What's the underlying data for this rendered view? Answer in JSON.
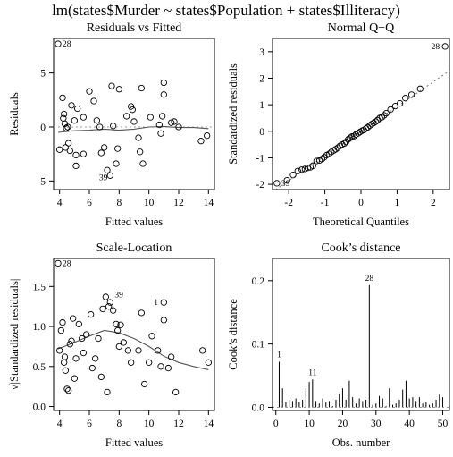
{
  "title": "lm(states$Murder ~ states$Population + states$Illiteracy)",
  "chart_data": [
    {
      "type": "scatter",
      "title": "Residuals vs Fitted",
      "xlabel": "Fitted values",
      "ylabel": "Residuals",
      "xlim": [
        3.6,
        14.4
      ],
      "ylim": [
        -5.8,
        8.2
      ],
      "xticks": [
        4,
        6,
        8,
        10,
        12,
        14
      ],
      "yticks": [
        -5,
        0,
        5
      ],
      "reference_line": 0,
      "points": [
        [
          3.9,
          7.7
        ],
        [
          4.0,
          -2.1
        ],
        [
          4.2,
          2.7
        ],
        [
          4.3,
          1.2
        ],
        [
          4.25,
          0.8
        ],
        [
          4.35,
          0.3
        ],
        [
          4.45,
          -0.1
        ],
        [
          4.55,
          0.0
        ],
        [
          4.4,
          -1.9
        ],
        [
          4.6,
          -1.5
        ],
        [
          4.7,
          -2.2
        ],
        [
          4.8,
          2.0
        ],
        [
          5.0,
          0.6
        ],
        [
          5.1,
          -2.6
        ],
        [
          5.2,
          1.7
        ],
        [
          5.1,
          -3.6
        ],
        [
          5.6,
          0.9
        ],
        [
          5.6,
          -2.5
        ],
        [
          6.0,
          3.3
        ],
        [
          6.3,
          2.4
        ],
        [
          6.5,
          0.6
        ],
        [
          6.7,
          0.0
        ],
        [
          6.8,
          -2.4
        ],
        [
          7.0,
          -1.9
        ],
        [
          7.2,
          -4.0
        ],
        [
          7.4,
          -4.5
        ],
        [
          7.5,
          3.8
        ],
        [
          7.6,
          0.1
        ],
        [
          7.8,
          -3.4
        ],
        [
          7.9,
          -2.0
        ],
        [
          8.0,
          3.5
        ],
        [
          8.5,
          1.0
        ],
        [
          8.8,
          1.9
        ],
        [
          8.9,
          1.6
        ],
        [
          9.0,
          0.5
        ],
        [
          9.3,
          -1.0
        ],
        [
          9.4,
          -2.3
        ],
        [
          9.5,
          3.6
        ],
        [
          9.6,
          -3.4
        ],
        [
          10.1,
          0.9
        ],
        [
          10.7,
          0.2
        ],
        [
          10.8,
          -0.6
        ],
        [
          10.9,
          1.0
        ],
        [
          11.0,
          3.0
        ],
        [
          11.0,
          4.1
        ],
        [
          11.5,
          0.4
        ],
        [
          11.7,
          0.5
        ],
        [
          12.0,
          0.0
        ],
        [
          13.5,
          -1.3
        ],
        [
          13.9,
          -0.8
        ]
      ],
      "smooth": [
        [
          3.9,
          -0.5
        ],
        [
          5,
          -0.35
        ],
        [
          6,
          -0.3
        ],
        [
          7,
          -0.2
        ],
        [
          8,
          -0.3
        ],
        [
          9,
          -0.2
        ],
        [
          10,
          0.0
        ],
        [
          11,
          0.05
        ],
        [
          12,
          -0.05
        ],
        [
          13,
          -0.05
        ],
        [
          14,
          -0.15
        ]
      ],
      "point_labels": [
        {
          "label": "28",
          "x": 3.9,
          "y": 7.7
        },
        {
          "label": "39",
          "x": 7.4,
          "y": -4.5
        }
      ]
    },
    {
      "type": "scatter",
      "title": "Normal Q−Q",
      "xlabel": "Theoretical Quantiles",
      "ylabel": "Standardized residuals",
      "xlim": [
        -2.45,
        2.45
      ],
      "ylim": [
        -2.2,
        3.5
      ],
      "xticks": [
        -2,
        -1,
        0,
        1,
        2
      ],
      "yticks": [
        -2,
        -1,
        0,
        1,
        2,
        3
      ],
      "reference_line": {
        "intercept": 0,
        "slope": 0.93
      },
      "points": [
        [
          -2.33,
          -1.96
        ],
        [
          -2.05,
          -1.85
        ],
        [
          -1.88,
          -1.65
        ],
        [
          -1.75,
          -1.5
        ],
        [
          -1.64,
          -1.45
        ],
        [
          -1.55,
          -1.42
        ],
        [
          -1.47,
          -1.38
        ],
        [
          -1.4,
          -1.36
        ],
        [
          -1.33,
          -1.3
        ],
        [
          -1.23,
          -1.12
        ],
        [
          -1.15,
          -1.1
        ],
        [
          -1.08,
          -1.05
        ],
        [
          -1.02,
          -0.98
        ],
        [
          -0.95,
          -0.9
        ],
        [
          -0.88,
          -0.85
        ],
        [
          -0.82,
          -0.78
        ],
        [
          -0.75,
          -0.72
        ],
        [
          -0.7,
          -0.68
        ],
        [
          -0.64,
          -0.62
        ],
        [
          -0.58,
          -0.55
        ],
        [
          -0.52,
          -0.5
        ],
        [
          -0.46,
          -0.46
        ],
        [
          -0.41,
          -0.4
        ],
        [
          -0.35,
          -0.3
        ],
        [
          -0.3,
          -0.25
        ],
        [
          -0.25,
          -0.2
        ],
        [
          -0.19,
          -0.18
        ],
        [
          -0.14,
          -0.12
        ],
        [
          -0.08,
          -0.08
        ],
        [
          -0.03,
          -0.03
        ],
        [
          0.03,
          0.02
        ],
        [
          0.08,
          0.05
        ],
        [
          0.14,
          0.1
        ],
        [
          0.19,
          0.15
        ],
        [
          0.25,
          0.22
        ],
        [
          0.3,
          0.27
        ],
        [
          0.35,
          0.31
        ],
        [
          0.41,
          0.36
        ],
        [
          0.46,
          0.42
        ],
        [
          0.52,
          0.5
        ],
        [
          0.58,
          0.53
        ],
        [
          0.64,
          0.6
        ],
        [
          0.7,
          0.68
        ],
        [
          0.82,
          0.82
        ],
        [
          0.95,
          0.95
        ],
        [
          1.08,
          1.05
        ],
        [
          1.23,
          1.25
        ],
        [
          1.4,
          1.38
        ],
        [
          1.64,
          1.6
        ],
        [
          2.33,
          3.2
        ]
      ],
      "point_labels": [
        {
          "label": "28",
          "x": 2.33,
          "y": 3.2
        },
        {
          "label": "39",
          "x": -2.33,
          "y": -1.96
        }
      ]
    },
    {
      "type": "scatter",
      "title": "Scale-Location",
      "xlabel": "Fitted values",
      "ylabel": "√|Standardized residuals|",
      "xlim": [
        3.6,
        14.4
      ],
      "ylim": [
        -0.05,
        1.85
      ],
      "xticks": [
        4,
        6,
        8,
        10,
        12,
        14
      ],
      "yticks": [
        0.0,
        0.5,
        1.0,
        1.5
      ],
      "points": [
        [
          3.9,
          1.79
        ],
        [
          4.0,
          0.7
        ],
        [
          4.1,
          0.95
        ],
        [
          4.2,
          1.05
        ],
        [
          4.3,
          0.55
        ],
        [
          4.35,
          0.62
        ],
        [
          4.4,
          0.45
        ],
        [
          4.5,
          0.22
        ],
        [
          4.6,
          0.2
        ],
        [
          4.7,
          0.78
        ],
        [
          4.8,
          0.82
        ],
        [
          4.9,
          1.1
        ],
        [
          5.0,
          0.35
        ],
        [
          5.1,
          0.6
        ],
        [
          5.3,
          1.03
        ],
        [
          5.5,
          0.85
        ],
        [
          5.6,
          0.67
        ],
        [
          5.8,
          0.9
        ],
        [
          6.1,
          1.15
        ],
        [
          6.2,
          0.48
        ],
        [
          6.4,
          0.6
        ],
        [
          6.6,
          0.85
        ],
        [
          6.8,
          0.37
        ],
        [
          6.9,
          1.22
        ],
        [
          7.1,
          1.37
        ],
        [
          7.2,
          0.18
        ],
        [
          7.3,
          1.25
        ],
        [
          7.4,
          1.3
        ],
        [
          7.6,
          1.2
        ],
        [
          7.8,
          1.03
        ],
        [
          7.9,
          0.95
        ],
        [
          8.0,
          0.75
        ],
        [
          8.1,
          1.02
        ],
        [
          8.3,
          0.8
        ],
        [
          8.6,
          0.7
        ],
        [
          8.8,
          0.55
        ],
        [
          9.3,
          0.7
        ],
        [
          9.5,
          1.17
        ],
        [
          9.7,
          0.28
        ],
        [
          10.0,
          0.55
        ],
        [
          10.2,
          0.88
        ],
        [
          10.6,
          0.7
        ],
        [
          10.8,
          0.5
        ],
        [
          11.0,
          1.08
        ],
        [
          11.0,
          1.3
        ],
        [
          11.3,
          0.48
        ],
        [
          11.5,
          0.62
        ],
        [
          11.8,
          0.18
        ],
        [
          13.6,
          0.7
        ],
        [
          14.0,
          0.55
        ]
      ],
      "smooth": [
        [
          3.9,
          0.72
        ],
        [
          5,
          0.8
        ],
        [
          6,
          0.88
        ],
        [
          7,
          0.95
        ],
        [
          8,
          0.92
        ],
        [
          9,
          0.85
        ],
        [
          10,
          0.75
        ],
        [
          11,
          0.63
        ],
        [
          12,
          0.55
        ],
        [
          13,
          0.5
        ],
        [
          14,
          0.46
        ]
      ],
      "point_labels": [
        {
          "label": "28",
          "x": 3.9,
          "y": 1.79
        },
        {
          "label": "39",
          "x": 7.4,
          "y": 1.4
        },
        {
          "label": "1",
          "x": 10.8,
          "y": 1.3
        }
      ]
    },
    {
      "type": "bar",
      "title": "Cook’s distance",
      "xlabel": "Obs. number",
      "ylabel": "Cook’s distance",
      "xlim": [
        -1,
        52
      ],
      "ylim": [
        -0.005,
        0.235
      ],
      "xticks": [
        0,
        10,
        20,
        30,
        40,
        50
      ],
      "yticks": [
        0.0,
        0.1,
        0.2
      ],
      "x": [
        1,
        2,
        3,
        4,
        5,
        6,
        7,
        8,
        9,
        10,
        11,
        12,
        13,
        14,
        15,
        16,
        17,
        18,
        19,
        20,
        21,
        22,
        23,
        24,
        25,
        26,
        27,
        28,
        29,
        30,
        31,
        32,
        33,
        34,
        35,
        36,
        37,
        38,
        39,
        40,
        41,
        42,
        43,
        44,
        45,
        46,
        47,
        48,
        49,
        50
      ],
      "values": [
        0.072,
        0.03,
        0.008,
        0.012,
        0.01,
        0.014,
        0.008,
        0.012,
        0.03,
        0.04,
        0.044,
        0.01,
        0.006,
        0.014,
        0.008,
        0.01,
        0.002,
        0.012,
        0.022,
        0.03,
        0.012,
        0.042,
        0.016,
        0.006,
        0.014,
        0.01,
        0.012,
        0.193,
        0.004,
        0.006,
        0.018,
        0.014,
        0.002,
        0.03,
        0.004,
        0.006,
        0.012,
        0.028,
        0.042,
        0.014,
        0.016,
        0.01,
        0.016,
        0.006,
        0.008,
        0.004,
        0.006,
        0.012,
        0.02,
        0.016
      ],
      "point_labels": [
        {
          "label": "1",
          "x": 1,
          "y": 0.072
        },
        {
          "label": "11",
          "x": 11,
          "y": 0.044
        },
        {
          "label": "28",
          "x": 28,
          "y": 0.193
        }
      ]
    }
  ]
}
